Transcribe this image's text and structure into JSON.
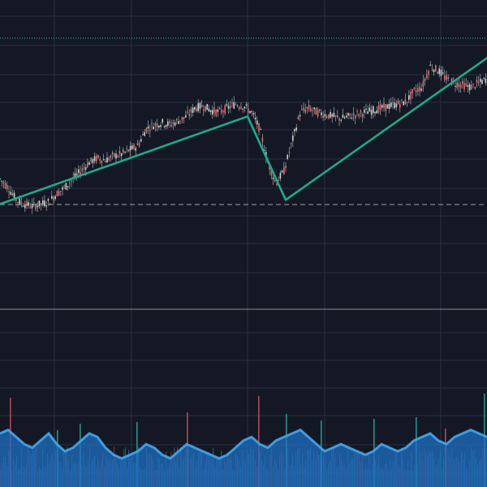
{
  "colors": {
    "background": "#141824",
    "grid": "#2a3040",
    "up_candle": "#c8d3cf",
    "down_candle": "#e26b6b",
    "wick": "#b9c2c0",
    "trendline": "#1faa8c",
    "price_line_top": "#2fbf8f",
    "price_line_dashed": "#9aa0a6",
    "pane_separator": "#8d8f8a",
    "volume_area_dark": "#1f6fc2",
    "volume_area_light": "#45a6ee",
    "volume_bar_teal": "#2a8f8a",
    "volume_bar_red": "#b2475a",
    "volume_bar_blue": "#3f7fd1"
  },
  "chart_data": {
    "type": "line",
    "description_free": true,
    "price_series": {
      "name": "",
      "x": [
        0,
        10,
        20,
        30,
        40,
        50,
        60,
        70,
        80,
        90,
        100,
        110,
        120,
        130,
        140,
        150,
        160,
        170,
        180,
        190,
        200,
        210,
        220,
        230,
        240,
        250,
        260,
        270,
        280,
        290,
        300,
        310,
        320,
        330,
        340,
        350,
        360,
        370,
        380,
        390,
        400,
        410,
        420,
        430,
        440,
        450,
        460,
        470,
        480,
        490,
        500,
        510,
        520,
        530,
        540,
        550,
        560,
        570,
        580,
        590,
        600
      ],
      "y": [
        62,
        58,
        52,
        50,
        49,
        50,
        51,
        55,
        58,
        62,
        66,
        70,
        72,
        71,
        73,
        74,
        76,
        78,
        86,
        88,
        89,
        88,
        90,
        92,
        96,
        97,
        95,
        94,
        96,
        98,
        97,
        94,
        86,
        70,
        60,
        66,
        80,
        94,
        96,
        94,
        93,
        92,
        91,
        92,
        93,
        94,
        95,
        96,
        97,
        98,
        99,
        104,
        106,
        116,
        114,
        110,
        108,
        107,
        106,
        108,
        110
      ]
    },
    "trendlines": [
      {
        "from": [
          0,
          50
        ],
        "to": [
          305,
          92
        ]
      },
      {
        "from": [
          305,
          92
        ],
        "to": [
          352,
          52
        ]
      },
      {
        "from": [
          352,
          52
        ],
        "to": [
          600,
          120
        ]
      }
    ],
    "reference_lines": {
      "top_dotted": 130,
      "dashed": 48
    },
    "volume": {
      "area": [
        30,
        32,
        28,
        24,
        22,
        26,
        30,
        24,
        20,
        22,
        26,
        30,
        28,
        22,
        18,
        16,
        18,
        20,
        24,
        22,
        18,
        16,
        20,
        24,
        22,
        20,
        18,
        16,
        18,
        22,
        26,
        28,
        24,
        22,
        26,
        28,
        30,
        32,
        28,
        24,
        20,
        22,
        24,
        22,
        20,
        18,
        20,
        24,
        22,
        20,
        22,
        26,
        28,
        30,
        26,
        24,
        28,
        30,
        32,
        30,
        28
      ],
      "spikes": [
        {
          "x": 12,
          "h": 110,
          "c": "red"
        },
        {
          "x": 70,
          "h": 70,
          "c": "teal"
        },
        {
          "x": 98,
          "h": 78,
          "c": "teal"
        },
        {
          "x": 168,
          "h": 80,
          "c": "teal"
        },
        {
          "x": 230,
          "h": 92,
          "c": "red"
        },
        {
          "x": 318,
          "h": 112,
          "c": "red"
        },
        {
          "x": 352,
          "h": 90,
          "c": "teal"
        },
        {
          "x": 395,
          "h": 82,
          "c": "teal"
        },
        {
          "x": 460,
          "h": 84,
          "c": "teal"
        },
        {
          "x": 512,
          "h": 86,
          "c": "teal"
        },
        {
          "x": 548,
          "h": 72,
          "c": "red"
        },
        {
          "x": 596,
          "h": 115,
          "c": "teal"
        }
      ]
    },
    "grid": true,
    "ylim": [
      0,
      140
    ],
    "xlim": [
      0,
      600
    ]
  }
}
